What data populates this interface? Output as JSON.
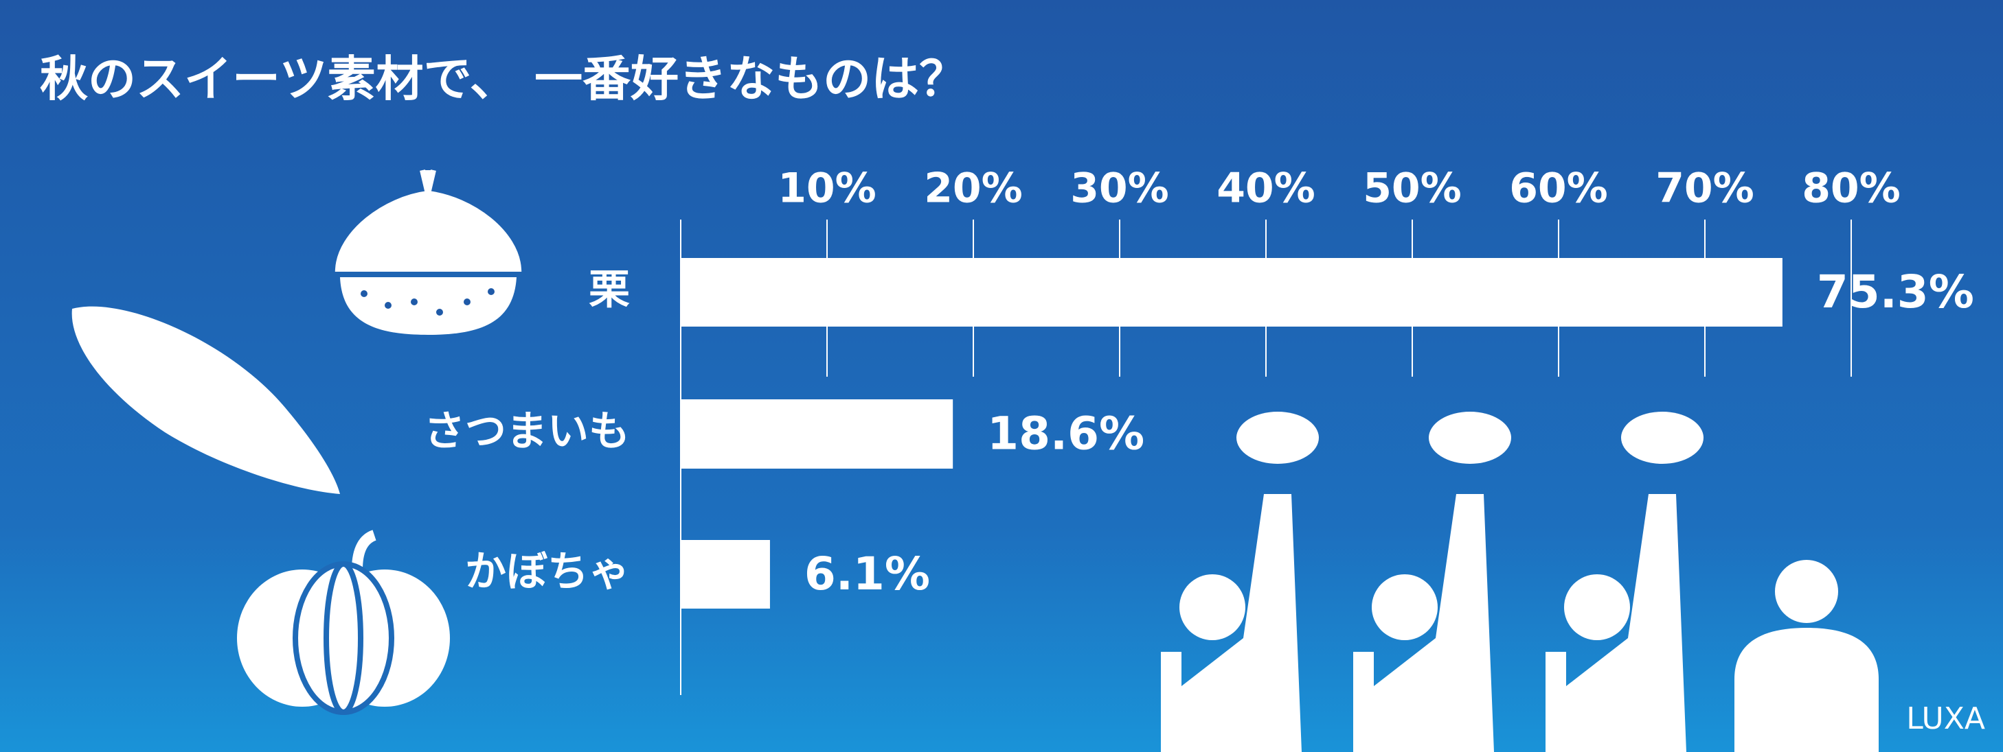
{
  "chart_data": {
    "type": "bar",
    "orientation": "horizontal",
    "title": "秋のスイーツ素材で、 一番好きなものは？",
    "categories": [
      "栗",
      "さつまいも",
      "かぼちゃ"
    ],
    "values": [
      75.3,
      18.6,
      6.1
    ],
    "value_labels": [
      "75.3%",
      "18.6%",
      "6.1%"
    ],
    "color": "#ffffff",
    "xlim": [
      0,
      80
    ],
    "xticks": [
      {
        "value": 10,
        "label": "10%"
      },
      {
        "value": 20,
        "label": "20%"
      },
      {
        "value": 30,
        "label": "30%"
      },
      {
        "value": 40,
        "label": "40%"
      },
      {
        "value": 50,
        "label": "50%"
      },
      {
        "value": 60,
        "label": "60%"
      },
      {
        "value": 70,
        "label": "70%"
      },
      {
        "value": 80,
        "label": "80%"
      }
    ],
    "grid": true
  },
  "logo": "LUXA"
}
